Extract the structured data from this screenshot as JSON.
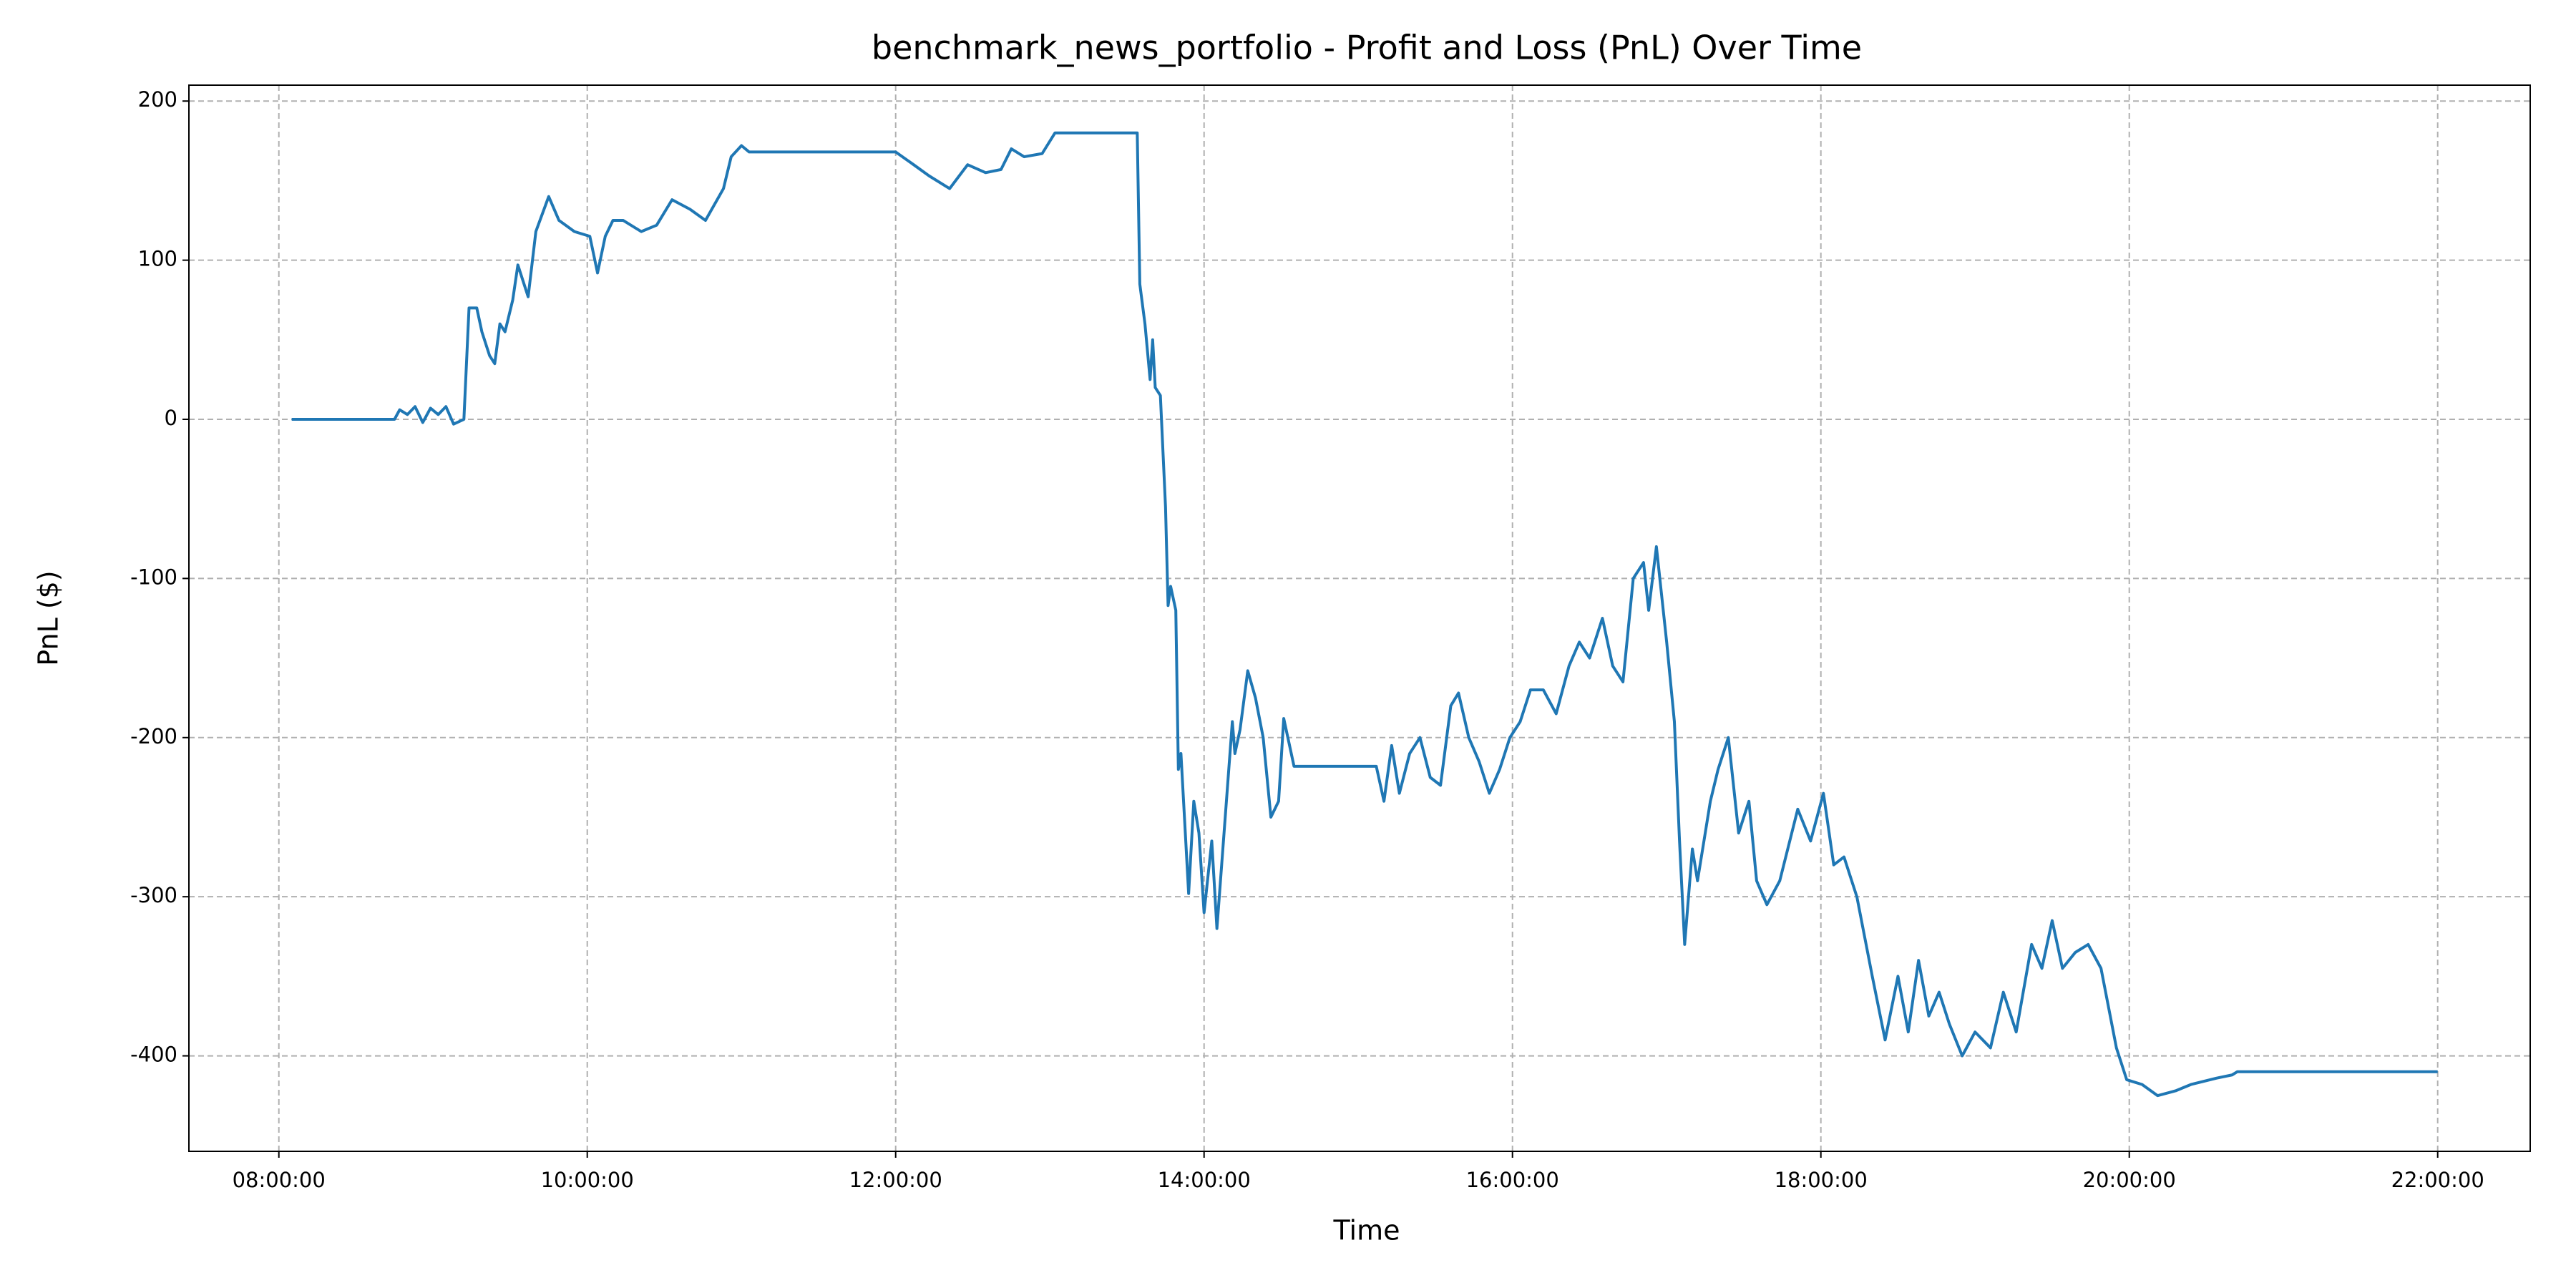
{
  "chart_data": {
    "type": "line",
    "title": "benchmark_news_portfolio - Profit and Loss (PnL) Over Time",
    "x_label": "Time",
    "y_label": "PnL ($)",
    "x": [
      "08:05:00",
      "08:45:00",
      "08:47:00",
      "08:50:00",
      "08:53:00",
      "08:56:00",
      "08:59:00",
      "09:02:00",
      "09:05:00",
      "09:08:00",
      "09:12:00",
      "09:14:00",
      "09:17:00",
      "09:19:00",
      "09:22:00",
      "09:24:00",
      "09:26:00",
      "09:28:00",
      "09:31:00",
      "09:33:00",
      "09:37:00",
      "09:40:00",
      "09:45:00",
      "09:49:00",
      "09:55:00",
      "10:01:00",
      "10:04:00",
      "10:07:00",
      "10:10:00",
      "10:14:00",
      "10:21:00",
      "10:27:00",
      "10:33:00",
      "10:40:00",
      "10:46:00",
      "10:53:00",
      "10:56:00",
      "11:00:00",
      "11:03:00",
      "12:00:00",
      "12:07:00",
      "12:13:00",
      "12:21:00",
      "12:28:00",
      "12:35:00",
      "12:41:00",
      "12:45:00",
      "12:50:00",
      "12:57:00",
      "13:02:00",
      "13:34:00",
      "13:35:00",
      "13:37:00",
      "13:39:00",
      "13:40:00",
      "13:41:00",
      "13:43:00",
      "13:45:00",
      "13:46:00",
      "13:47:00",
      "13:49:00",
      "13:50:00",
      "13:51:00",
      "13:54:00",
      "13:56:00",
      "13:58:00",
      "14:00:00",
      "14:03:00",
      "14:05:00",
      "14:08:00",
      "14:11:00",
      "14:12:00",
      "14:14:00",
      "14:17:00",
      "14:20:00",
      "14:23:00",
      "14:26:00",
      "14:29:00",
      "14:31:00",
      "14:35:00",
      "15:07:00",
      "15:10:00",
      "15:13:00",
      "15:16:00",
      "15:20:00",
      "15:24:00",
      "15:28:00",
      "15:32:00",
      "15:36:00",
      "15:39:00",
      "15:43:00",
      "15:47:00",
      "15:51:00",
      "15:55:00",
      "15:59:00",
      "16:03:00",
      "16:07:00",
      "16:12:00",
      "16:17:00",
      "16:22:00",
      "16:26:00",
      "16:30:00",
      "16:35:00",
      "16:39:00",
      "16:43:00",
      "16:47:00",
      "16:51:00",
      "16:53:00",
      "16:56:00",
      "17:00:00",
      "17:03:00",
      "17:05:00",
      "17:07:00",
      "17:10:00",
      "17:12:00",
      "17:17:00",
      "17:20:00",
      "17:24:00",
      "17:28:00",
      "17:32:00",
      "17:35:00",
      "17:39:00",
      "17:44:00",
      "17:51:00",
      "17:56:00",
      "18:01:00",
      "18:05:00",
      "18:09:00",
      "18:14:00",
      "18:20:00",
      "18:25:00",
      "18:30:00",
      "18:34:00",
      "18:38:00",
      "18:42:00",
      "18:46:00",
      "18:50:00",
      "18:55:00",
      "19:00:00",
      "19:06:00",
      "19:11:00",
      "19:16:00",
      "19:22:00",
      "19:26:00",
      "19:30:00",
      "19:34:00",
      "19:39:00",
      "19:44:00",
      "19:49:00",
      "19:55:00",
      "19:59:00",
      "20:05:00",
      "20:11:00",
      "20:18:00",
      "20:24:00",
      "20:34:00",
      "20:40:00",
      "20:42:00",
      "22:00:00"
    ],
    "series": [
      {
        "name": "PnL",
        "color": "#1f77b4",
        "values": [
          0,
          0,
          6,
          3,
          8,
          -2,
          7,
          3,
          8,
          -3,
          0,
          70,
          70,
          55,
          40,
          35,
          60,
          55,
          75,
          97,
          77,
          118,
          140,
          125,
          118,
          115,
          92,
          115,
          125,
          125,
          118,
          122,
          138,
          132,
          125,
          145,
          165,
          172,
          168,
          168,
          160,
          153,
          145,
          160,
          155,
          157,
          170,
          165,
          167,
          180,
          180,
          85,
          60,
          25,
          50,
          20,
          15,
          -55,
          -117,
          -105,
          -120,
          -220,
          -210,
          -298,
          -240,
          -260,
          -310,
          -265,
          -320,
          -255,
          -190,
          -210,
          -195,
          -158,
          -175,
          -200,
          -250,
          -240,
          -188,
          -218,
          -218,
          -240,
          -205,
          -235,
          -210,
          -200,
          -225,
          -230,
          -180,
          -172,
          -200,
          -215,
          -235,
          -220,
          -200,
          -190,
          -170,
          -170,
          -185,
          -155,
          -140,
          -150,
          -125,
          -155,
          -165,
          -100,
          -90,
          -120,
          -80,
          -140,
          -190,
          -265,
          -330,
          -270,
          -290,
          -240,
          -220,
          -200,
          -260,
          -240,
          -290,
          -305,
          -290,
          -245,
          -265,
          -235,
          -280,
          -275,
          -300,
          -350,
          -390,
          -350,
          -385,
          -340,
          -375,
          -360,
          -380,
          -400,
          -385,
          -395,
          -360,
          -385,
          -330,
          -345,
          -315,
          -345,
          -335,
          -330,
          -345,
          -395,
          -415,
          -418,
          -425,
          -422,
          -418,
          -414,
          -412,
          -410,
          -410
        ]
      }
    ],
    "xlim": [
      "07:25:00",
      "22:36:00"
    ],
    "xticks": [
      "08:00:00",
      "10:00:00",
      "12:00:00",
      "14:00:00",
      "16:00:00",
      "18:00:00",
      "20:00:00",
      "22:00:00"
    ],
    "ylim": [
      -460,
      210
    ],
    "yticks": [
      -400,
      -300,
      -200,
      -100,
      0,
      100,
      200
    ],
    "grid": true
  }
}
